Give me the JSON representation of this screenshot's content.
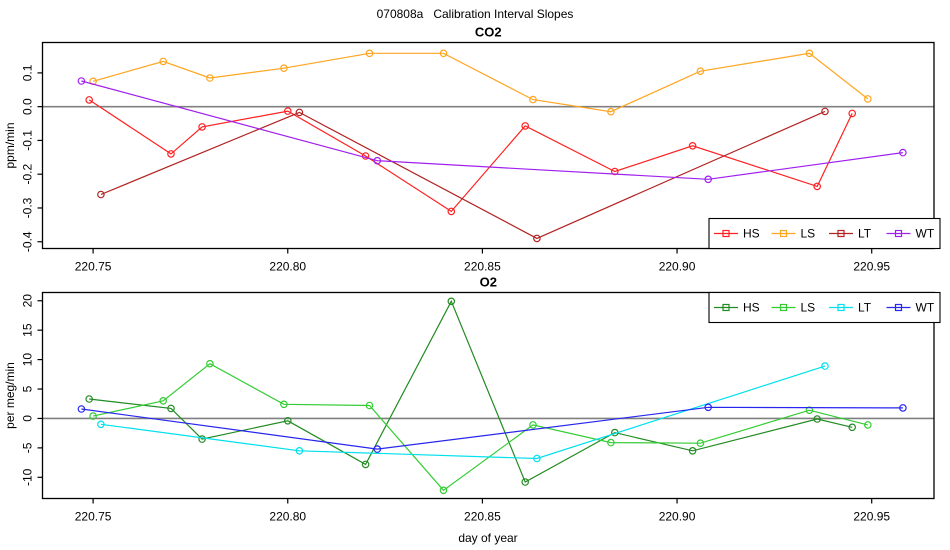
{
  "page": {
    "title": "070808a   Calibration Interval Slopes",
    "xlabel": "day of year"
  },
  "chart_data": [
    {
      "type": "line",
      "title": "CO2",
      "ylabel": "ppm/min",
      "xlim": [
        220.737,
        220.966
      ],
      "ylim": [
        -0.42,
        0.19
      ],
      "xtick_values": [
        220.75,
        220.8,
        220.85,
        220.9,
        220.95
      ],
      "xtick_labels": [
        "220.75",
        "220.80",
        "220.85",
        "220.90",
        "220.95"
      ],
      "ytick_values": [
        0.1,
        0.0,
        -0.1,
        -0.2,
        -0.3,
        -0.4
      ],
      "ytick_labels": [
        "0.1",
        "0.0",
        "-0.1",
        "-0.2",
        "-0.3",
        "-0.4"
      ],
      "zero_line": true,
      "zero_line_color": "#808080",
      "grid": false,
      "legend_position": "bottomright",
      "series": [
        {
          "name": "HS",
          "color": "#ff2020",
          "x": [
            220.749,
            220.77,
            220.778,
            220.8,
            220.82,
            220.842,
            220.861,
            220.884,
            220.904,
            220.936,
            220.945
          ],
          "y": [
            0.02,
            -0.14,
            -0.06,
            -0.013,
            -0.146,
            -0.31,
            -0.057,
            -0.192,
            -0.116,
            -0.236,
            -0.02
          ]
        },
        {
          "name": "LS",
          "color": "#ffa520",
          "x": [
            220.75,
            220.768,
            220.78,
            220.799,
            220.821,
            220.84,
            220.863,
            220.883,
            220.906,
            220.934,
            220.949
          ],
          "y": [
            0.075,
            0.134,
            0.085,
            0.114,
            0.158,
            0.158,
            0.021,
            -0.015,
            0.105,
            0.158,
            0.023
          ]
        },
        {
          "name": "LT",
          "color": "#b22222",
          "x": [
            220.752,
            220.803,
            220.864,
            220.938
          ],
          "y": [
            -0.26,
            -0.017,
            -0.39,
            -0.014
          ]
        },
        {
          "name": "WT",
          "color": "#a020f0",
          "x": [
            220.747,
            220.823,
            220.908,
            220.958
          ],
          "y": [
            0.076,
            -0.16,
            -0.215,
            -0.136
          ]
        }
      ]
    },
    {
      "type": "line",
      "title": "O2",
      "ylabel": "per meg/min",
      "xlim": [
        220.737,
        220.966
      ],
      "ylim": [
        -13.6,
        21.4
      ],
      "xtick_values": [
        220.75,
        220.8,
        220.85,
        220.9,
        220.95
      ],
      "xtick_labels": [
        "220.75",
        "220.80",
        "220.85",
        "220.90",
        "220.95"
      ],
      "ytick_values": [
        20,
        15,
        10,
        5,
        0,
        -5,
        -10
      ],
      "ytick_labels": [
        "20",
        "15",
        "10",
        "5",
        "0",
        "-5",
        "-10"
      ],
      "zero_line": true,
      "zero_line_color": "#808080",
      "grid": false,
      "legend_position": "topright",
      "series": [
        {
          "name": "HS",
          "color": "#228b22",
          "x": [
            220.749,
            220.77,
            220.778,
            220.8,
            220.82,
            220.842,
            220.861,
            220.884,
            220.904,
            220.936,
            220.945
          ],
          "y": [
            3.3,
            1.7,
            -3.5,
            -0.4,
            -7.8,
            19.9,
            -10.8,
            -2.4,
            -5.5,
            -0.1,
            -1.5
          ]
        },
        {
          "name": "LS",
          "color": "#33cc33",
          "x": [
            220.75,
            220.768,
            220.78,
            220.799,
            220.821,
            220.84,
            220.863,
            220.883,
            220.906,
            220.934,
            220.949
          ],
          "y": [
            0.4,
            3.0,
            9.3,
            2.4,
            2.2,
            -12.2,
            -1.1,
            -4.1,
            -4.2,
            1.4,
            -1.1
          ]
        },
        {
          "name": "LT",
          "color": "#00e0ee",
          "x": [
            220.752,
            220.803,
            220.864,
            220.938
          ],
          "y": [
            -1.0,
            -5.5,
            -6.8,
            8.9
          ]
        },
        {
          "name": "WT",
          "color": "#2626f0",
          "x": [
            220.747,
            220.823,
            220.908,
            220.958
          ],
          "y": [
            1.6,
            -5.2,
            1.9,
            1.8
          ]
        }
      ]
    }
  ]
}
